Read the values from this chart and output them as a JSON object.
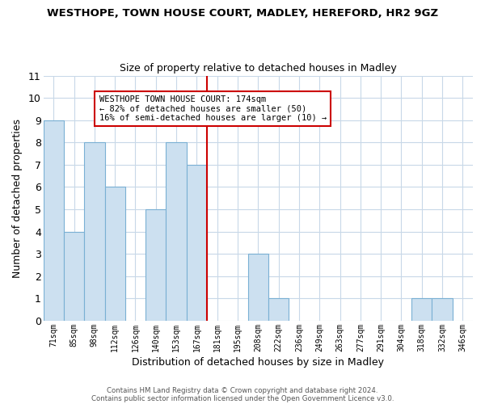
{
  "title": "WESTHOPE, TOWN HOUSE COURT, MADLEY, HEREFORD, HR2 9GZ",
  "subtitle": "Size of property relative to detached houses in Madley",
  "xlabel": "Distribution of detached houses by size in Madley",
  "ylabel": "Number of detached properties",
  "footer_line1": "Contains HM Land Registry data © Crown copyright and database right 2024.",
  "footer_line2": "Contains public sector information licensed under the Open Government Licence v3.0.",
  "bins": [
    "71sqm",
    "85sqm",
    "98sqm",
    "112sqm",
    "126sqm",
    "140sqm",
    "153sqm",
    "167sqm",
    "181sqm",
    "195sqm",
    "208sqm",
    "222sqm",
    "236sqm",
    "249sqm",
    "263sqm",
    "277sqm",
    "291sqm",
    "304sqm",
    "318sqm",
    "332sqm",
    "346sqm"
  ],
  "counts": [
    9,
    4,
    8,
    6,
    0,
    5,
    8,
    7,
    0,
    0,
    3,
    1,
    0,
    0,
    0,
    0,
    0,
    0,
    1,
    1,
    0
  ],
  "bar_color": "#cce0f0",
  "bar_edge_color": "#7ab0d4",
  "reference_line_x": 8,
  "reference_line_color": "#cc0000",
  "ann_line1": "WESTHOPE TOWN HOUSE COURT: 174sqm",
  "ann_line2": "← 82% of detached houses are smaller (50)",
  "ann_line3": "16% of semi-detached houses are larger (10) →",
  "ann_box_color": "white",
  "ann_border_color": "#cc0000",
  "ylim": [
    0,
    11
  ],
  "yticks": [
    0,
    1,
    2,
    3,
    4,
    5,
    6,
    7,
    8,
    9,
    10,
    11
  ],
  "bg_color": "#ffffff",
  "grid_color": "#c8d8e8",
  "title_color": "#000000",
  "footer_color": "#555555"
}
